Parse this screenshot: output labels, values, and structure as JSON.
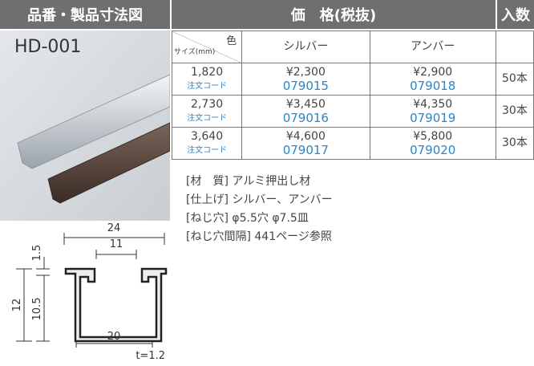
{
  "header": {
    "left_title": "品番・製品寸法図",
    "price_title": "価　格(税抜)",
    "quantity_title": "入数"
  },
  "product": {
    "code": "HD-001"
  },
  "table": {
    "color_label": "色",
    "size_label": "サイズ(mm)",
    "columns": [
      "シルバー",
      "アンバー"
    ],
    "rows": [
      {
        "size": "1,820",
        "code_label": "注文コード",
        "prices": [
          "¥2,300",
          "¥2,900"
        ],
        "codes": [
          "079015",
          "079018"
        ],
        "quantity": "50本"
      },
      {
        "size": "2,730",
        "code_label": "注文コード",
        "prices": [
          "¥3,450",
          "¥4,350"
        ],
        "codes": [
          "079016",
          "079019"
        ],
        "quantity": "30本"
      },
      {
        "size": "3,640",
        "code_label": "注文コード",
        "prices": [
          "¥4,600",
          "¥5,800"
        ],
        "codes": [
          "079017",
          "079020"
        ],
        "quantity": "30本"
      }
    ]
  },
  "notes": [
    "[材　質] アルミ押出し材",
    "[仕上げ] シルバー、アンバー",
    "[ねじ穴] φ5.5穴 φ7.5皿",
    "[ねじ穴間隔] 441ページ参照"
  ],
  "drawing": {
    "width": "24",
    "inner": "11",
    "lip": "1.5",
    "height": "12",
    "inner_height": "10.5",
    "bottom": "20",
    "thickness": "t=1.2"
  }
}
